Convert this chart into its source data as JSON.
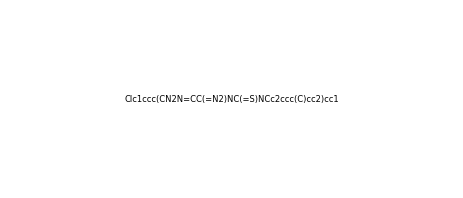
{
  "smiles": "Clc1ccc(CN2N=CC(=N2)NC(=S)NCc2ccc(C)cc2)cc1",
  "title": "",
  "bg_color": "#ffffff",
  "line_color": "#000000",
  "figsize": [
    4.64,
    1.98
  ],
  "dpi": 100
}
